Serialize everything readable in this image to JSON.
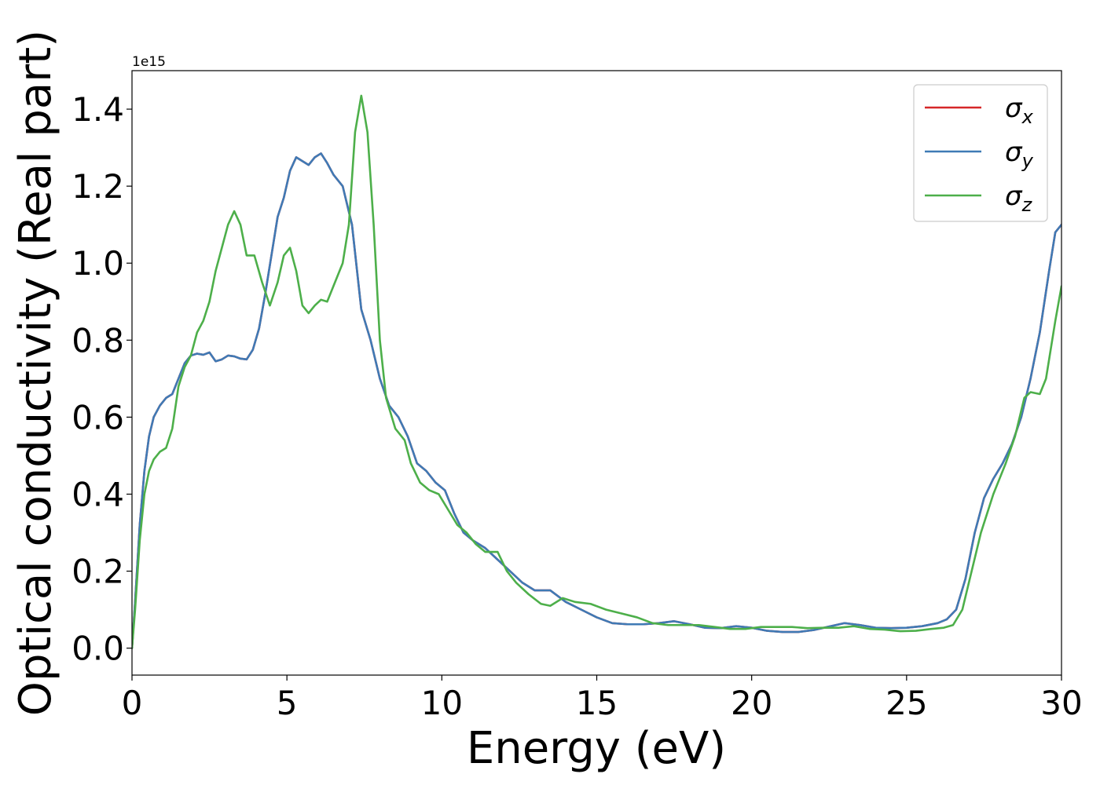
{
  "chart_data": {
    "type": "line",
    "title": "",
    "xlabel": "Energy (eV)",
    "ylabel": "Optical conductivity (Real part)",
    "y_offset_label": "1e15",
    "y_scale": 1000000000000000.0,
    "xlim": [
      0,
      30
    ],
    "ylim": [
      -0.07,
      1.5
    ],
    "x_ticks": [
      0,
      5,
      10,
      15,
      20,
      25,
      30
    ],
    "y_ticks": [
      0.0,
      0.2,
      0.4,
      0.6,
      0.8,
      1.0,
      1.2,
      1.4
    ],
    "grid": false,
    "legend_position": "top-right",
    "series": [
      {
        "name": "x",
        "legend_symbol": "σ",
        "color": "#d62728",
        "points": [
          [
            0,
            0.0
          ],
          [
            0.1,
            0.12
          ],
          [
            0.25,
            0.32
          ],
          [
            0.4,
            0.46
          ],
          [
            0.55,
            0.55
          ],
          [
            0.7,
            0.6
          ],
          [
            0.9,
            0.63
          ],
          [
            1.1,
            0.65
          ],
          [
            1.3,
            0.66
          ],
          [
            1.5,
            0.7
          ],
          [
            1.7,
            0.74
          ],
          [
            1.9,
            0.76
          ],
          [
            2.1,
            0.765
          ],
          [
            2.3,
            0.762
          ],
          [
            2.5,
            0.768
          ],
          [
            2.7,
            0.745
          ],
          [
            2.9,
            0.75
          ],
          [
            3.1,
            0.76
          ],
          [
            3.3,
            0.758
          ],
          [
            3.5,
            0.752
          ],
          [
            3.7,
            0.75
          ],
          [
            3.9,
            0.775
          ],
          [
            4.1,
            0.83
          ],
          [
            4.3,
            0.92
          ],
          [
            4.5,
            1.02
          ],
          [
            4.7,
            1.12
          ],
          [
            4.9,
            1.17
          ],
          [
            5.1,
            1.24
          ],
          [
            5.3,
            1.275
          ],
          [
            5.5,
            1.265
          ],
          [
            5.7,
            1.255
          ],
          [
            5.9,
            1.275
          ],
          [
            6.1,
            1.285
          ],
          [
            6.3,
            1.26
          ],
          [
            6.5,
            1.23
          ],
          [
            6.8,
            1.2
          ],
          [
            7.1,
            1.1
          ],
          [
            7.4,
            0.88
          ],
          [
            7.7,
            0.8
          ],
          [
            8.0,
            0.7
          ],
          [
            8.3,
            0.63
          ],
          [
            8.6,
            0.6
          ],
          [
            8.9,
            0.55
          ],
          [
            9.2,
            0.48
          ],
          [
            9.5,
            0.46
          ],
          [
            9.8,
            0.43
          ],
          [
            10.1,
            0.41
          ],
          [
            10.4,
            0.35
          ],
          [
            10.7,
            0.3
          ],
          [
            11.0,
            0.28
          ],
          [
            11.4,
            0.26
          ],
          [
            11.8,
            0.23
          ],
          [
            12.2,
            0.2
          ],
          [
            12.6,
            0.17
          ],
          [
            13.0,
            0.15
          ],
          [
            13.5,
            0.15
          ],
          [
            14.0,
            0.12
          ],
          [
            14.5,
            0.1
          ],
          [
            15.0,
            0.08
          ],
          [
            15.5,
            0.065
          ],
          [
            16.0,
            0.062
          ],
          [
            16.5,
            0.062
          ],
          [
            17.0,
            0.065
          ],
          [
            17.5,
            0.07
          ],
          [
            18.0,
            0.062
          ],
          [
            18.5,
            0.053
          ],
          [
            19.0,
            0.052
          ],
          [
            19.5,
            0.057
          ],
          [
            20.0,
            0.053
          ],
          [
            20.5,
            0.045
          ],
          [
            21.0,
            0.042
          ],
          [
            21.5,
            0.042
          ],
          [
            22.0,
            0.047
          ],
          [
            22.5,
            0.056
          ],
          [
            23.0,
            0.065
          ],
          [
            23.5,
            0.06
          ],
          [
            24.0,
            0.053
          ],
          [
            24.5,
            0.052
          ],
          [
            25.0,
            0.053
          ],
          [
            25.5,
            0.057
          ],
          [
            26.0,
            0.065
          ],
          [
            26.3,
            0.075
          ],
          [
            26.6,
            0.1
          ],
          [
            26.9,
            0.18
          ],
          [
            27.2,
            0.3
          ],
          [
            27.5,
            0.39
          ],
          [
            27.8,
            0.44
          ],
          [
            28.1,
            0.48
          ],
          [
            28.4,
            0.53
          ],
          [
            28.7,
            0.6
          ],
          [
            29.0,
            0.7
          ],
          [
            29.3,
            0.82
          ],
          [
            29.6,
            0.98
          ],
          [
            29.8,
            1.08
          ],
          [
            30.0,
            1.1
          ]
        ]
      },
      {
        "name": "y",
        "legend_symbol": "σ",
        "color": "#3f7ab5",
        "points": [
          [
            0,
            0.0
          ],
          [
            0.1,
            0.12
          ],
          [
            0.25,
            0.32
          ],
          [
            0.4,
            0.46
          ],
          [
            0.55,
            0.55
          ],
          [
            0.7,
            0.6
          ],
          [
            0.9,
            0.63
          ],
          [
            1.1,
            0.65
          ],
          [
            1.3,
            0.66
          ],
          [
            1.5,
            0.7
          ],
          [
            1.7,
            0.74
          ],
          [
            1.9,
            0.76
          ],
          [
            2.1,
            0.765
          ],
          [
            2.3,
            0.762
          ],
          [
            2.5,
            0.768
          ],
          [
            2.7,
            0.745
          ],
          [
            2.9,
            0.75
          ],
          [
            3.1,
            0.76
          ],
          [
            3.3,
            0.758
          ],
          [
            3.5,
            0.752
          ],
          [
            3.7,
            0.75
          ],
          [
            3.9,
            0.775
          ],
          [
            4.1,
            0.83
          ],
          [
            4.3,
            0.92
          ],
          [
            4.5,
            1.02
          ],
          [
            4.7,
            1.12
          ],
          [
            4.9,
            1.17
          ],
          [
            5.1,
            1.24
          ],
          [
            5.3,
            1.275
          ],
          [
            5.5,
            1.265
          ],
          [
            5.7,
            1.255
          ],
          [
            5.9,
            1.275
          ],
          [
            6.1,
            1.285
          ],
          [
            6.3,
            1.26
          ],
          [
            6.5,
            1.23
          ],
          [
            6.8,
            1.2
          ],
          [
            7.1,
            1.1
          ],
          [
            7.4,
            0.88
          ],
          [
            7.7,
            0.8
          ],
          [
            8.0,
            0.7
          ],
          [
            8.3,
            0.63
          ],
          [
            8.6,
            0.6
          ],
          [
            8.9,
            0.55
          ],
          [
            9.2,
            0.48
          ],
          [
            9.5,
            0.46
          ],
          [
            9.8,
            0.43
          ],
          [
            10.1,
            0.41
          ],
          [
            10.4,
            0.35
          ],
          [
            10.7,
            0.3
          ],
          [
            11.0,
            0.28
          ],
          [
            11.4,
            0.26
          ],
          [
            11.8,
            0.23
          ],
          [
            12.2,
            0.2
          ],
          [
            12.6,
            0.17
          ],
          [
            13.0,
            0.15
          ],
          [
            13.5,
            0.15
          ],
          [
            14.0,
            0.12
          ],
          [
            14.5,
            0.1
          ],
          [
            15.0,
            0.08
          ],
          [
            15.5,
            0.065
          ],
          [
            16.0,
            0.062
          ],
          [
            16.5,
            0.062
          ],
          [
            17.0,
            0.065
          ],
          [
            17.5,
            0.07
          ],
          [
            18.0,
            0.062
          ],
          [
            18.5,
            0.053
          ],
          [
            19.0,
            0.052
          ],
          [
            19.5,
            0.057
          ],
          [
            20.0,
            0.053
          ],
          [
            20.5,
            0.045
          ],
          [
            21.0,
            0.042
          ],
          [
            21.5,
            0.042
          ],
          [
            22.0,
            0.047
          ],
          [
            22.5,
            0.056
          ],
          [
            23.0,
            0.065
          ],
          [
            23.5,
            0.06
          ],
          [
            24.0,
            0.053
          ],
          [
            24.5,
            0.052
          ],
          [
            25.0,
            0.053
          ],
          [
            25.5,
            0.057
          ],
          [
            26.0,
            0.065
          ],
          [
            26.3,
            0.075
          ],
          [
            26.6,
            0.1
          ],
          [
            26.9,
            0.18
          ],
          [
            27.2,
            0.3
          ],
          [
            27.5,
            0.39
          ],
          [
            27.8,
            0.44
          ],
          [
            28.1,
            0.48
          ],
          [
            28.4,
            0.53
          ],
          [
            28.7,
            0.6
          ],
          [
            29.0,
            0.7
          ],
          [
            29.3,
            0.82
          ],
          [
            29.6,
            0.98
          ],
          [
            29.8,
            1.08
          ],
          [
            30.0,
            1.1
          ]
        ]
      },
      {
        "name": "z",
        "legend_symbol": "σ",
        "color": "#4daf4a",
        "points": [
          [
            0,
            0.0
          ],
          [
            0.1,
            0.1
          ],
          [
            0.25,
            0.28
          ],
          [
            0.4,
            0.4
          ],
          [
            0.55,
            0.46
          ],
          [
            0.7,
            0.49
          ],
          [
            0.9,
            0.51
          ],
          [
            1.1,
            0.52
          ],
          [
            1.3,
            0.57
          ],
          [
            1.5,
            0.68
          ],
          [
            1.7,
            0.73
          ],
          [
            1.9,
            0.76
          ],
          [
            2.1,
            0.82
          ],
          [
            2.3,
            0.85
          ],
          [
            2.5,
            0.9
          ],
          [
            2.7,
            0.98
          ],
          [
            2.9,
            1.04
          ],
          [
            3.1,
            1.1
          ],
          [
            3.3,
            1.135
          ],
          [
            3.5,
            1.1
          ],
          [
            3.7,
            1.02
          ],
          [
            3.95,
            1.02
          ],
          [
            4.2,
            0.95
          ],
          [
            4.45,
            0.89
          ],
          [
            4.7,
            0.95
          ],
          [
            4.9,
            1.02
          ],
          [
            5.1,
            1.04
          ],
          [
            5.3,
            0.98
          ],
          [
            5.5,
            0.89
          ],
          [
            5.7,
            0.87
          ],
          [
            5.9,
            0.89
          ],
          [
            6.1,
            0.905
          ],
          [
            6.3,
            0.9
          ],
          [
            6.5,
            0.94
          ],
          [
            6.8,
            1.0
          ],
          [
            7.0,
            1.1
          ],
          [
            7.2,
            1.34
          ],
          [
            7.4,
            1.435
          ],
          [
            7.6,
            1.34
          ],
          [
            7.8,
            1.1
          ],
          [
            8.0,
            0.8
          ],
          [
            8.2,
            0.65
          ],
          [
            8.5,
            0.57
          ],
          [
            8.8,
            0.54
          ],
          [
            9.0,
            0.48
          ],
          [
            9.3,
            0.43
          ],
          [
            9.6,
            0.41
          ],
          [
            9.9,
            0.4
          ],
          [
            10.2,
            0.36
          ],
          [
            10.5,
            0.32
          ],
          [
            10.8,
            0.3
          ],
          [
            11.1,
            0.27
          ],
          [
            11.4,
            0.25
          ],
          [
            11.8,
            0.25
          ],
          [
            12.1,
            0.2
          ],
          [
            12.4,
            0.17
          ],
          [
            12.8,
            0.14
          ],
          [
            13.2,
            0.115
          ],
          [
            13.5,
            0.11
          ],
          [
            13.9,
            0.13
          ],
          [
            14.3,
            0.12
          ],
          [
            14.8,
            0.115
          ],
          [
            15.3,
            0.1
          ],
          [
            15.8,
            0.09
          ],
          [
            16.3,
            0.08
          ],
          [
            16.8,
            0.065
          ],
          [
            17.3,
            0.06
          ],
          [
            17.8,
            0.06
          ],
          [
            18.3,
            0.06
          ],
          [
            18.8,
            0.055
          ],
          [
            19.3,
            0.05
          ],
          [
            19.8,
            0.05
          ],
          [
            20.3,
            0.055
          ],
          [
            20.8,
            0.055
          ],
          [
            21.3,
            0.055
          ],
          [
            21.8,
            0.052
          ],
          [
            22.3,
            0.053
          ],
          [
            22.8,
            0.053
          ],
          [
            23.3,
            0.057
          ],
          [
            23.8,
            0.05
          ],
          [
            24.3,
            0.048
          ],
          [
            24.8,
            0.044
          ],
          [
            25.3,
            0.045
          ],
          [
            25.8,
            0.05
          ],
          [
            26.2,
            0.053
          ],
          [
            26.5,
            0.06
          ],
          [
            26.8,
            0.1
          ],
          [
            27.1,
            0.2
          ],
          [
            27.4,
            0.3
          ],
          [
            27.8,
            0.4
          ],
          [
            28.2,
            0.48
          ],
          [
            28.5,
            0.55
          ],
          [
            28.8,
            0.65
          ],
          [
            29.0,
            0.665
          ],
          [
            29.3,
            0.66
          ],
          [
            29.5,
            0.7
          ],
          [
            29.8,
            0.85
          ],
          [
            30.0,
            0.94
          ]
        ]
      }
    ]
  }
}
